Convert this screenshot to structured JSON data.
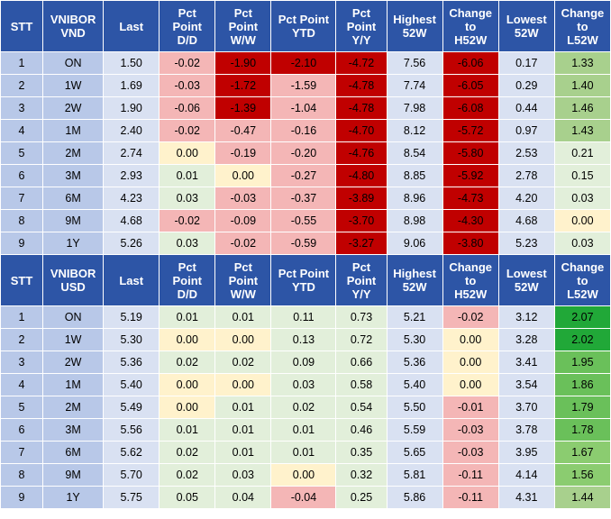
{
  "columns": [
    "STT",
    "VNIBOR\nVND",
    "Last",
    "Pct\nPoint\nD/D",
    "Pct\nPoint\nW/W",
    "Pct Point\nYTD",
    "Pct\nPoint\nY/Y",
    "Highest\n52W",
    "Change\nto\nH52W",
    "Lowest\n52W",
    "Change\nto\nL52W"
  ],
  "tables": [
    {
      "id": "vnd",
      "header": [
        "STT",
        "VNIBOR\nVND",
        "Last",
        "Pct\nPoint\nD/D",
        "Pct\nPoint\nW/W",
        "Pct Point\nYTD",
        "Pct\nPoint\nY/Y",
        "Highest\n52W",
        "Change\nto\nH52W",
        "Lowest\n52W",
        "Change\nto\nL52W"
      ],
      "rows": [
        {
          "stt": "1",
          "tenor": "ON",
          "last": "1.50",
          "dd": "-0.02",
          "ww": "-1.90",
          "ytd": "-2.10",
          "yy": "-4.72",
          "high": "7.56",
          "ch": "-6.06",
          "low": "0.17",
          "cl": "1.33"
        },
        {
          "stt": "2",
          "tenor": "1W",
          "last": "1.69",
          "dd": "-0.03",
          "ww": "-1.72",
          "ytd": "-1.59",
          "yy": "-4.78",
          "high": "7.74",
          "ch": "-6.05",
          "low": "0.29",
          "cl": "1.40"
        },
        {
          "stt": "3",
          "tenor": "2W",
          "last": "1.90",
          "dd": "-0.06",
          "ww": "-1.39",
          "ytd": "-1.04",
          "yy": "-4.78",
          "high": "7.98",
          "ch": "-6.08",
          "low": "0.44",
          "cl": "1.46"
        },
        {
          "stt": "4",
          "tenor": "1M",
          "last": "2.40",
          "dd": "-0.02",
          "ww": "-0.47",
          "ytd": "-0.16",
          "yy": "-4.70",
          "high": "8.12",
          "ch": "-5.72",
          "low": "0.97",
          "cl": "1.43"
        },
        {
          "stt": "5",
          "tenor": "2M",
          "last": "2.74",
          "dd": "0.00",
          "ww": "-0.19",
          "ytd": "-0.20",
          "yy": "-4.76",
          "high": "8.54",
          "ch": "-5.80",
          "low": "2.53",
          "cl": "0.21"
        },
        {
          "stt": "6",
          "tenor": "3M",
          "last": "2.93",
          "dd": "0.01",
          "ww": "0.00",
          "ytd": "-0.27",
          "yy": "-4.80",
          "high": "8.85",
          "ch": "-5.92",
          "low": "2.78",
          "cl": "0.15"
        },
        {
          "stt": "7",
          "tenor": "6M",
          "last": "4.23",
          "dd": "0.03",
          "ww": "-0.03",
          "ytd": "-0.37",
          "yy": "-3.89",
          "high": "8.96",
          "ch": "-4.73",
          "low": "4.20",
          "cl": "0.03"
        },
        {
          "stt": "8",
          "tenor": "9M",
          "last": "4.68",
          "dd": "-0.02",
          "ww": "-0.09",
          "ytd": "-0.55",
          "yy": "-3.70",
          "high": "8.98",
          "ch": "-4.30",
          "low": "4.68",
          "cl": "0.00"
        },
        {
          "stt": "9",
          "tenor": "1Y",
          "last": "5.26",
          "dd": "0.03",
          "ww": "-0.02",
          "ytd": "-0.59",
          "yy": "-3.27",
          "high": "9.06",
          "ch": "-3.80",
          "low": "5.23",
          "cl": "0.03"
        }
      ],
      "colors": [
        [
          "#f4b6b6",
          "#c00000",
          "#c00000",
          "#c00000",
          "#c00000",
          "#a8d08d"
        ],
        [
          "#f4b6b6",
          "#c00000",
          "#f4b6b6",
          "#c00000",
          "#c00000",
          "#a8d08d"
        ],
        [
          "#f4b6b6",
          "#c00000",
          "#f4b6b6",
          "#c00000",
          "#c00000",
          "#a8d08d"
        ],
        [
          "#f4b6b6",
          "#f4b6b6",
          "#f4b6b6",
          "#c00000",
          "#c00000",
          "#a8d08d"
        ],
        [
          "#fff2cc",
          "#f4b6b6",
          "#f4b6b6",
          "#c00000",
          "#c00000",
          "#e2efda"
        ],
        [
          "#e2efda",
          "#fff2cc",
          "#f4b6b6",
          "#c00000",
          "#c00000",
          "#e2efda"
        ],
        [
          "#e2efda",
          "#f4b6b6",
          "#f4b6b6",
          "#c00000",
          "#c00000",
          "#e2efda"
        ],
        [
          "#f4b6b6",
          "#f4b6b6",
          "#f4b6b6",
          "#c00000",
          "#c00000",
          "#fff2cc"
        ],
        [
          "#e2efda",
          "#f4b6b6",
          "#f4b6b6",
          "#c00000",
          "#c00000",
          "#e2efda"
        ]
      ]
    },
    {
      "id": "usd",
      "header": [
        "STT",
        "VNIBOR\nUSD",
        "Last",
        "Pct\nPoint\nD/D",
        "Pct\nPoint\nW/W",
        "Pct Point\nYTD",
        "Pct\nPoint\nY/Y",
        "Highest\n52W",
        "Change\nto\nH52W",
        "Lowest\n52W",
        "Change\nto\nL52W"
      ],
      "rows": [
        {
          "stt": "1",
          "tenor": "ON",
          "last": "5.19",
          "dd": "0.01",
          "ww": "0.01",
          "ytd": "0.11",
          "yy": "0.73",
          "high": "5.21",
          "ch": "-0.02",
          "low": "3.12",
          "cl": "2.07"
        },
        {
          "stt": "2",
          "tenor": "1W",
          "last": "5.30",
          "dd": "0.00",
          "ww": "0.00",
          "ytd": "0.13",
          "yy": "0.72",
          "high": "5.30",
          "ch": "0.00",
          "low": "3.28",
          "cl": "2.02"
        },
        {
          "stt": "3",
          "tenor": "2W",
          "last": "5.36",
          "dd": "0.02",
          "ww": "0.02",
          "ytd": "0.09",
          "yy": "0.66",
          "high": "5.36",
          "ch": "0.00",
          "low": "3.41",
          "cl": "1.95"
        },
        {
          "stt": "4",
          "tenor": "1M",
          "last": "5.40",
          "dd": "0.00",
          "ww": "0.00",
          "ytd": "0.03",
          "yy": "0.58",
          "high": "5.40",
          "ch": "0.00",
          "low": "3.54",
          "cl": "1.86"
        },
        {
          "stt": "5",
          "tenor": "2M",
          "last": "5.49",
          "dd": "0.00",
          "ww": "0.01",
          "ytd": "0.02",
          "yy": "0.54",
          "high": "5.50",
          "ch": "-0.01",
          "low": "3.70",
          "cl": "1.79"
        },
        {
          "stt": "6",
          "tenor": "3M",
          "last": "5.56",
          "dd": "0.01",
          "ww": "0.01",
          "ytd": "0.01",
          "yy": "0.46",
          "high": "5.59",
          "ch": "-0.03",
          "low": "3.78",
          "cl": "1.78"
        },
        {
          "stt": "7",
          "tenor": "6M",
          "last": "5.62",
          "dd": "0.02",
          "ww": "0.01",
          "ytd": "0.01",
          "yy": "0.35",
          "high": "5.65",
          "ch": "-0.03",
          "low": "3.95",
          "cl": "1.67"
        },
        {
          "stt": "8",
          "tenor": "9M",
          "last": "5.70",
          "dd": "0.02",
          "ww": "0.03",
          "ytd": "0.00",
          "yy": "0.32",
          "high": "5.81",
          "ch": "-0.11",
          "low": "4.14",
          "cl": "1.56"
        },
        {
          "stt": "9",
          "tenor": "1Y",
          "last": "5.75",
          "dd": "0.05",
          "ww": "0.04",
          "ytd": "-0.04",
          "yy": "0.25",
          "high": "5.86",
          "ch": "-0.11",
          "low": "4.31",
          "cl": "1.44"
        }
      ],
      "colors": [
        [
          "#e2efda",
          "#e2efda",
          "#e2efda",
          "#e2efda",
          "#f4b6b6",
          "#21a838"
        ],
        [
          "#fff2cc",
          "#fff2cc",
          "#e2efda",
          "#e2efda",
          "#fff2cc",
          "#21a838"
        ],
        [
          "#e2efda",
          "#e2efda",
          "#e2efda",
          "#e2efda",
          "#fff2cc",
          "#6ac05a"
        ],
        [
          "#fff2cc",
          "#fff2cc",
          "#e2efda",
          "#e2efda",
          "#fff2cc",
          "#6ac05a"
        ],
        [
          "#fff2cc",
          "#e2efda",
          "#e2efda",
          "#e2efda",
          "#f4b6b6",
          "#6ac05a"
        ],
        [
          "#e2efda",
          "#e2efda",
          "#e2efda",
          "#e2efda",
          "#f4b6b6",
          "#6ac05a"
        ],
        [
          "#e2efda",
          "#e2efda",
          "#e2efda",
          "#e2efda",
          "#f4b6b6",
          "#8bcc70"
        ],
        [
          "#e2efda",
          "#e2efda",
          "#fff2cc",
          "#e2efda",
          "#f4b6b6",
          "#8bcc70"
        ],
        [
          "#e2efda",
          "#e2efda",
          "#f4b6b6",
          "#e2efda",
          "#f4b6b6",
          "#a8d08d"
        ]
      ]
    }
  ]
}
